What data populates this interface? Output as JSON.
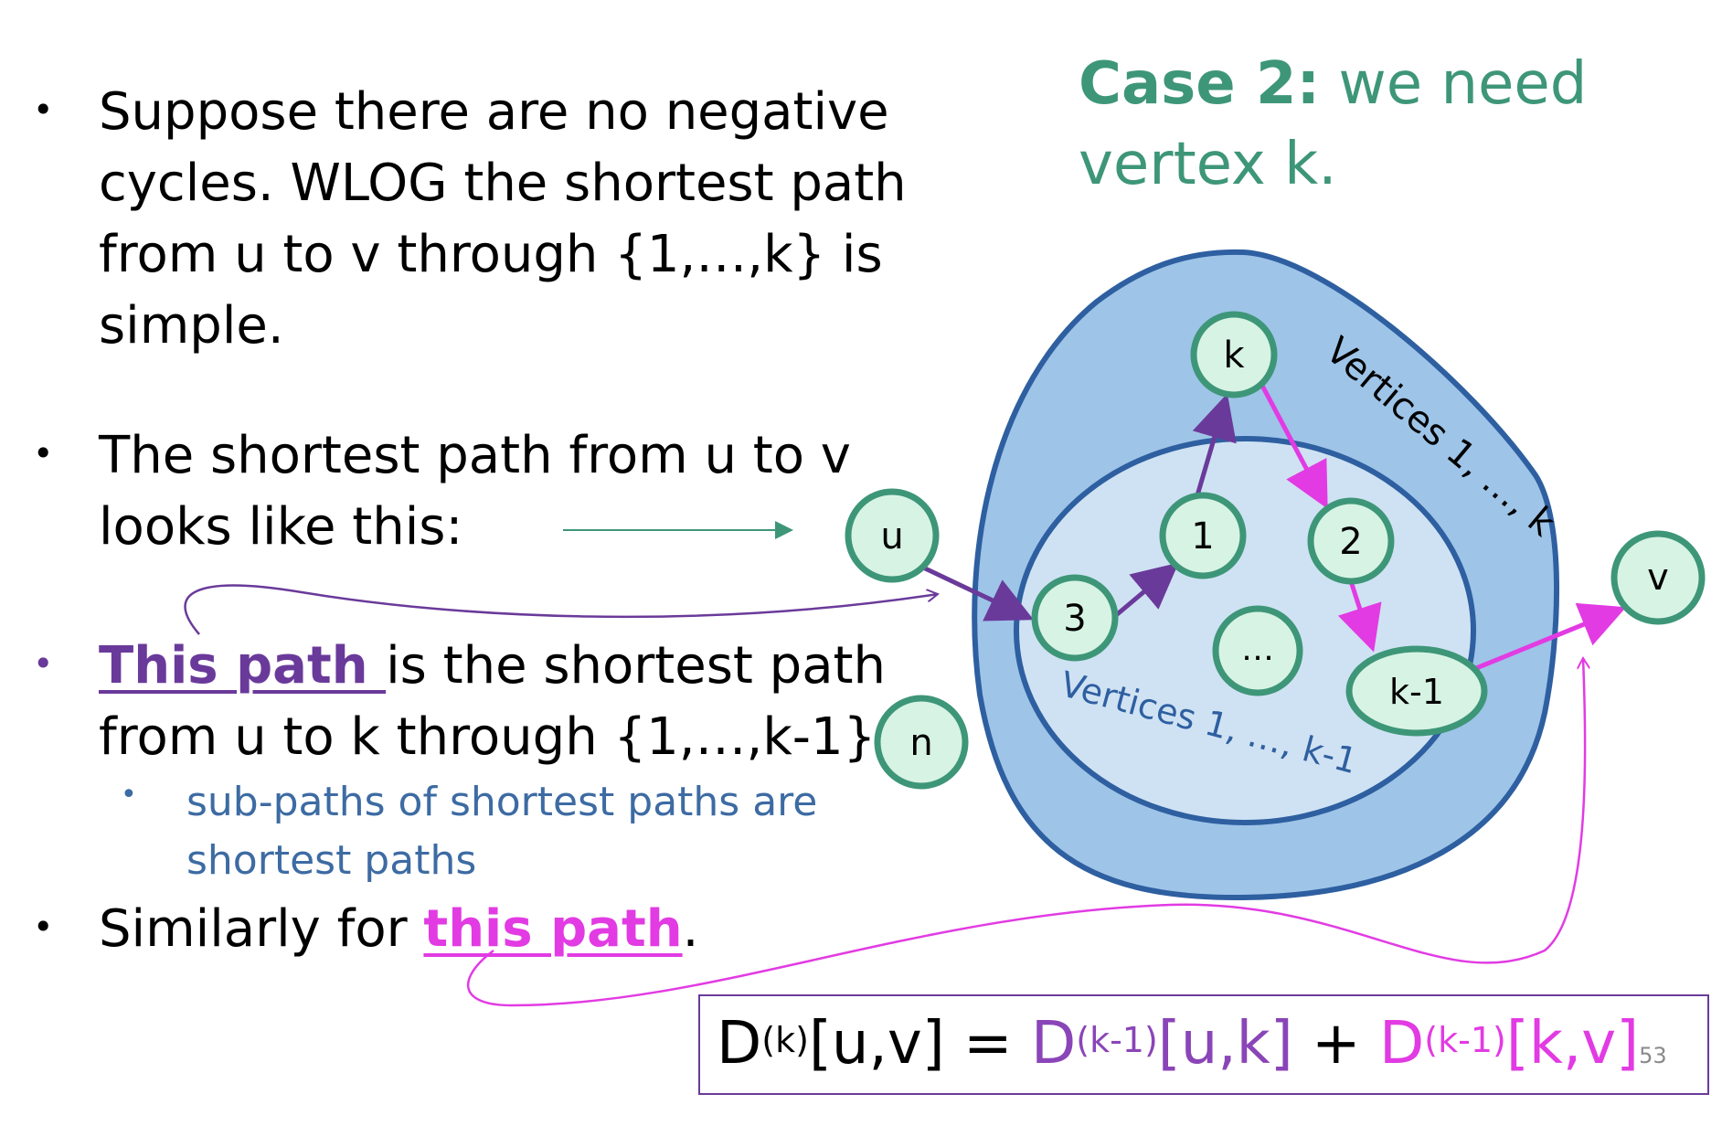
{
  "bullets": {
    "b1": {
      "lines": [
        "Suppose there are no negative",
        "cycles. WLOG the shortest path",
        "from u to v through {1,…,k} is",
        "simple."
      ]
    },
    "b2": {
      "lines": [
        "The shortest path from u to v",
        "looks like this:"
      ]
    },
    "b3": {
      "link": "This path ",
      "rest_line1": "is the shortest path",
      "line2": "from u to k through {1,…,k-1}."
    },
    "b3_sub": {
      "lines": [
        "sub-paths of shortest paths are",
        "shortest paths"
      ]
    },
    "b4": {
      "prefix": "Similarly for ",
      "link": "this path",
      "suffix": "."
    }
  },
  "case": {
    "bold": "Case 2:",
    "rest_line1": " we need",
    "line2": "vertex k."
  },
  "diagram": {
    "outer_label": "Vertices 1, …, k",
    "inner_label": "Vertices 1, …, k-1",
    "nodes": {
      "u": "u",
      "v": "v",
      "n": "n",
      "k": "k",
      "one": "1",
      "two": "2",
      "three": "3",
      "dots": "…",
      "km1": "k-1"
    }
  },
  "formula": {
    "lhs_D": "D",
    "lhs_sup": "(k)",
    "lhs_idx": "[u,v]",
    "eq": " = ",
    "t1_D": "D",
    "t1_sup": "(k-1)",
    "t1_idx": "[u,k]",
    "plus": " + ",
    "t2_D": "D",
    "t2_sup": "(k-1)",
    "t2_idx": "[k,v]"
  },
  "page_number": "53",
  "colors": {
    "green_text": "#3e9678",
    "node_fill": "#d7f3e4",
    "node_stroke": "#3e9678",
    "outer_fill": "#9ec4e8",
    "outer_stroke": "#2e5fa0",
    "inner_fill": "#cfe2f3",
    "purple": "#6a3a9a",
    "magenta": "#e23be3",
    "sub_text": "#3d6ba3"
  }
}
